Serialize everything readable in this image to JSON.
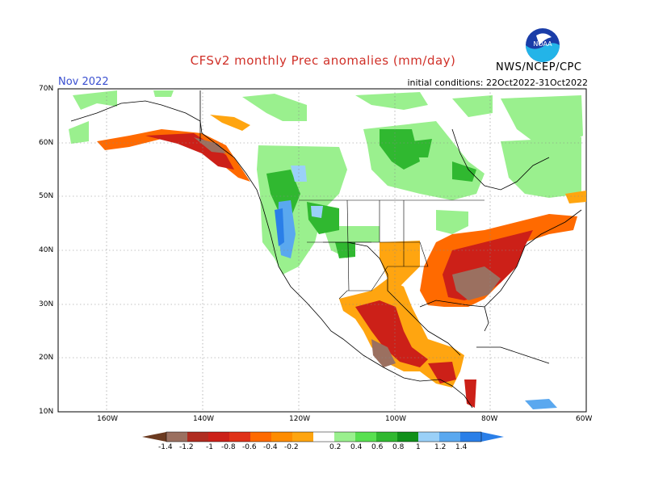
{
  "header": {
    "title": "CFSv2 monthly Prec anomalies (mm/day)",
    "month": "Nov 2022",
    "initial_conditions": "initial conditions: 22Oct2022-31Oct2022",
    "agency": "NWS/NCEP/CPC",
    "logo_text": "NOAA"
  },
  "map": {
    "lat_labels": [
      "70N",
      "60N",
      "50N",
      "40N",
      "30N",
      "20N",
      "10N"
    ],
    "lon_labels": [
      "160W",
      "140W",
      "120W",
      "100W",
      "80W",
      "60W"
    ]
  },
  "legend": {
    "labels": [
      "-1.4",
      "-1.2",
      "-1",
      "-0.8",
      "-0.6",
      "-0.4",
      "-0.2",
      "0.2",
      "0.4",
      "0.6",
      "0.8",
      "1",
      "1.2",
      "1.4"
    ],
    "colors": [
      "#6b3a20",
      "#9b7060",
      "#b02c20",
      "#cc2018",
      "#e03218",
      "#ff6a00",
      "#ffa510",
      "#ffffff",
      "#9af08e",
      "#58e050",
      "#30b830",
      "#10901a",
      "#9ad0f8",
      "#5aa8ef",
      "#2a7fe8"
    ]
  }
}
